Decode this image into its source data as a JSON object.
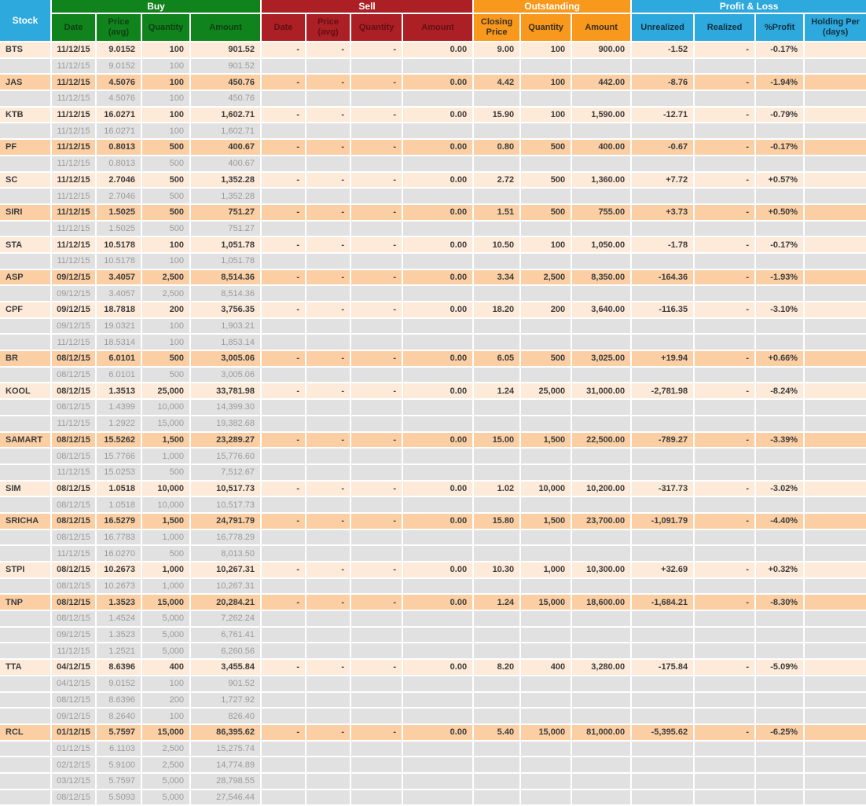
{
  "header": {
    "stock_label": "Stock",
    "buy": {
      "label": "Buy",
      "columns": [
        "Date",
        "Price (avg)",
        "Quantity",
        "Amount"
      ]
    },
    "sell": {
      "label": "Sell",
      "columns": [
        "Date",
        "Price (avg)",
        "Quantity",
        "Amount"
      ]
    },
    "outstanding": {
      "label": "Outstanding",
      "columns": [
        "Closing Price",
        "Quantity",
        "Amount"
      ]
    },
    "profit_loss": {
      "label": "Profit & Loss",
      "columns": [
        "Unrealized",
        "Realized",
        "%Profit",
        "Holding Per (days)"
      ]
    }
  },
  "colors": {
    "header_blue": "#2ea9dd",
    "buy_green": "#10831c",
    "sell_red": "#ac1f24",
    "outstanding_orange": "#f8981d",
    "row_light": "#fdead9",
    "row_dark": "#fbcfa3",
    "row_sub_gray": "#e1e1e1",
    "negative_text": "#cc1111",
    "positive_text": "#159915"
  },
  "rows": [
    {
      "stock": "BTS",
      "buy": {
        "date": "11/12/15",
        "price": "9.0152",
        "qty": "100",
        "amount": "901.52"
      },
      "sell": {
        "date": "-",
        "price": "-",
        "qty": "-",
        "amount": "0.00"
      },
      "out": {
        "close": "9.00",
        "qty": "100",
        "amount": "900.00"
      },
      "pl": {
        "unrealized": "-1.52",
        "realized": "-",
        "pct": "-0.17%",
        "sign": "neg"
      },
      "lots": [
        {
          "date": "11/12/15",
          "price": "9.0152",
          "qty": "100",
          "amount": "901.52"
        }
      ]
    },
    {
      "stock": "JAS",
      "buy": {
        "date": "11/12/15",
        "price": "4.5076",
        "qty": "100",
        "amount": "450.76"
      },
      "sell": {
        "date": "-",
        "price": "-",
        "qty": "-",
        "amount": "0.00"
      },
      "out": {
        "close": "4.42",
        "qty": "100",
        "amount": "442.00"
      },
      "pl": {
        "unrealized": "-8.76",
        "realized": "-",
        "pct": "-1.94%",
        "sign": "neg"
      },
      "lots": [
        {
          "date": "11/12/15",
          "price": "4.5076",
          "qty": "100",
          "amount": "450.76"
        }
      ]
    },
    {
      "stock": "KTB",
      "buy": {
        "date": "11/12/15",
        "price": "16.0271",
        "qty": "100",
        "amount": "1,602.71"
      },
      "sell": {
        "date": "-",
        "price": "-",
        "qty": "-",
        "amount": "0.00"
      },
      "out": {
        "close": "15.90",
        "qty": "100",
        "amount": "1,590.00"
      },
      "pl": {
        "unrealized": "-12.71",
        "realized": "-",
        "pct": "-0.79%",
        "sign": "neg"
      },
      "lots": [
        {
          "date": "11/12/15",
          "price": "16.0271",
          "qty": "100",
          "amount": "1,602.71"
        }
      ]
    },
    {
      "stock": "PF",
      "buy": {
        "date": "11/12/15",
        "price": "0.8013",
        "qty": "500",
        "amount": "400.67"
      },
      "sell": {
        "date": "-",
        "price": "-",
        "qty": "-",
        "amount": "0.00"
      },
      "out": {
        "close": "0.80",
        "qty": "500",
        "amount": "400.00"
      },
      "pl": {
        "unrealized": "-0.67",
        "realized": "-",
        "pct": "-0.17%",
        "sign": "neg"
      },
      "lots": [
        {
          "date": "11/12/15",
          "price": "0.8013",
          "qty": "500",
          "amount": "400.67"
        }
      ]
    },
    {
      "stock": "SC",
      "buy": {
        "date": "11/12/15",
        "price": "2.7046",
        "qty": "500",
        "amount": "1,352.28"
      },
      "sell": {
        "date": "-",
        "price": "-",
        "qty": "-",
        "amount": "0.00"
      },
      "out": {
        "close": "2.72",
        "qty": "500",
        "amount": "1,360.00"
      },
      "pl": {
        "unrealized": "+7.72",
        "realized": "-",
        "pct": "+0.57%",
        "sign": "pos"
      },
      "lots": [
        {
          "date": "11/12/15",
          "price": "2.7046",
          "qty": "500",
          "amount": "1,352.28"
        }
      ]
    },
    {
      "stock": "SIRI",
      "buy": {
        "date": "11/12/15",
        "price": "1.5025",
        "qty": "500",
        "amount": "751.27"
      },
      "sell": {
        "date": "-",
        "price": "-",
        "qty": "-",
        "amount": "0.00"
      },
      "out": {
        "close": "1.51",
        "qty": "500",
        "amount": "755.00"
      },
      "pl": {
        "unrealized": "+3.73",
        "realized": "-",
        "pct": "+0.50%",
        "sign": "pos"
      },
      "lots": [
        {
          "date": "11/12/15",
          "price": "1.5025",
          "qty": "500",
          "amount": "751.27"
        }
      ]
    },
    {
      "stock": "STA",
      "buy": {
        "date": "11/12/15",
        "price": "10.5178",
        "qty": "100",
        "amount": "1,051.78"
      },
      "sell": {
        "date": "-",
        "price": "-",
        "qty": "-",
        "amount": "0.00"
      },
      "out": {
        "close": "10.50",
        "qty": "100",
        "amount": "1,050.00"
      },
      "pl": {
        "unrealized": "-1.78",
        "realized": "-",
        "pct": "-0.17%",
        "sign": "neg"
      },
      "lots": [
        {
          "date": "11/12/15",
          "price": "10.5178",
          "qty": "100",
          "amount": "1,051.78"
        }
      ]
    },
    {
      "stock": "ASP",
      "buy": {
        "date": "09/12/15",
        "price": "3.4057",
        "qty": "2,500",
        "amount": "8,514.36"
      },
      "sell": {
        "date": "-",
        "price": "-",
        "qty": "-",
        "amount": "0.00"
      },
      "out": {
        "close": "3.34",
        "qty": "2,500",
        "amount": "8,350.00"
      },
      "pl": {
        "unrealized": "-164.36",
        "realized": "-",
        "pct": "-1.93%",
        "sign": "neg"
      },
      "lots": [
        {
          "date": "09/12/15",
          "price": "3.4057",
          "qty": "2,500",
          "amount": "8,514.36"
        }
      ]
    },
    {
      "stock": "CPF",
      "buy": {
        "date": "09/12/15",
        "price": "18.7818",
        "qty": "200",
        "amount": "3,756.35"
      },
      "sell": {
        "date": "-",
        "price": "-",
        "qty": "-",
        "amount": "0.00"
      },
      "out": {
        "close": "18.20",
        "qty": "200",
        "amount": "3,640.00"
      },
      "pl": {
        "unrealized": "-116.35",
        "realized": "-",
        "pct": "-3.10%",
        "sign": "neg"
      },
      "lots": [
        {
          "date": "09/12/15",
          "price": "19.0321",
          "qty": "100",
          "amount": "1,903.21"
        },
        {
          "date": "11/12/15",
          "price": "18.5314",
          "qty": "100",
          "amount": "1,853.14"
        }
      ]
    },
    {
      "stock": "BR",
      "buy": {
        "date": "08/12/15",
        "price": "6.0101",
        "qty": "500",
        "amount": "3,005.06"
      },
      "sell": {
        "date": "-",
        "price": "-",
        "qty": "-",
        "amount": "0.00"
      },
      "out": {
        "close": "6.05",
        "qty": "500",
        "amount": "3,025.00"
      },
      "pl": {
        "unrealized": "+19.94",
        "realized": "-",
        "pct": "+0.66%",
        "sign": "pos"
      },
      "lots": [
        {
          "date": "08/12/15",
          "price": "6.0101",
          "qty": "500",
          "amount": "3,005.06"
        }
      ]
    },
    {
      "stock": "KOOL",
      "buy": {
        "date": "08/12/15",
        "price": "1.3513",
        "qty": "25,000",
        "amount": "33,781.98"
      },
      "sell": {
        "date": "-",
        "price": "-",
        "qty": "-",
        "amount": "0.00"
      },
      "out": {
        "close": "1.24",
        "qty": "25,000",
        "amount": "31,000.00"
      },
      "pl": {
        "unrealized": "-2,781.98",
        "realized": "-",
        "pct": "-8.24%",
        "sign": "neg"
      },
      "lots": [
        {
          "date": "08/12/15",
          "price": "1.4399",
          "qty": "10,000",
          "amount": "14,399.30"
        },
        {
          "date": "11/12/15",
          "price": "1.2922",
          "qty": "15,000",
          "amount": "19,382.68"
        }
      ]
    },
    {
      "stock": "SAMART",
      "buy": {
        "date": "08/12/15",
        "price": "15.5262",
        "qty": "1,500",
        "amount": "23,289.27"
      },
      "sell": {
        "date": "-",
        "price": "-",
        "qty": "-",
        "amount": "0.00"
      },
      "out": {
        "close": "15.00",
        "qty": "1,500",
        "amount": "22,500.00"
      },
      "pl": {
        "unrealized": "-789.27",
        "realized": "-",
        "pct": "-3.39%",
        "sign": "neg"
      },
      "lots": [
        {
          "date": "08/12/15",
          "price": "15.7766",
          "qty": "1,000",
          "amount": "15,776.60"
        },
        {
          "date": "11/12/15",
          "price": "15.0253",
          "qty": "500",
          "amount": "7,512.67"
        }
      ]
    },
    {
      "stock": "SIM",
      "buy": {
        "date": "08/12/15",
        "price": "1.0518",
        "qty": "10,000",
        "amount": "10,517.73"
      },
      "sell": {
        "date": "-",
        "price": "-",
        "qty": "-",
        "amount": "0.00"
      },
      "out": {
        "close": "1.02",
        "qty": "10,000",
        "amount": "10,200.00"
      },
      "pl": {
        "unrealized": "-317.73",
        "realized": "-",
        "pct": "-3.02%",
        "sign": "neg"
      },
      "lots": [
        {
          "date": "08/12/15",
          "price": "1.0518",
          "qty": "10,000",
          "amount": "10,517.73"
        }
      ]
    },
    {
      "stock": "SRICHA",
      "buy": {
        "date": "08/12/15",
        "price": "16.5279",
        "qty": "1,500",
        "amount": "24,791.79"
      },
      "sell": {
        "date": "-",
        "price": "-",
        "qty": "-",
        "amount": "0.00"
      },
      "out": {
        "close": "15.80",
        "qty": "1,500",
        "amount": "23,700.00"
      },
      "pl": {
        "unrealized": "-1,091.79",
        "realized": "-",
        "pct": "-4.40%",
        "sign": "neg"
      },
      "lots": [
        {
          "date": "08/12/15",
          "price": "16.7783",
          "qty": "1,000",
          "amount": "16,778.29"
        },
        {
          "date": "11/12/15",
          "price": "16.0270",
          "qty": "500",
          "amount": "8,013.50"
        }
      ]
    },
    {
      "stock": "STPI",
      "buy": {
        "date": "08/12/15",
        "price": "10.2673",
        "qty": "1,000",
        "amount": "10,267.31"
      },
      "sell": {
        "date": "-",
        "price": "-",
        "qty": "-",
        "amount": "0.00"
      },
      "out": {
        "close": "10.30",
        "qty": "1,000",
        "amount": "10,300.00"
      },
      "pl": {
        "unrealized": "+32.69",
        "realized": "-",
        "pct": "+0.32%",
        "sign": "pos"
      },
      "lots": [
        {
          "date": "08/12/15",
          "price": "10.2673",
          "qty": "1,000",
          "amount": "10,267.31"
        }
      ]
    },
    {
      "stock": "TNP",
      "buy": {
        "date": "08/12/15",
        "price": "1.3523",
        "qty": "15,000",
        "amount": "20,284.21"
      },
      "sell": {
        "date": "-",
        "price": "-",
        "qty": "-",
        "amount": "0.00"
      },
      "out": {
        "close": "1.24",
        "qty": "15,000",
        "amount": "18,600.00"
      },
      "pl": {
        "unrealized": "-1,684.21",
        "realized": "-",
        "pct": "-8.30%",
        "sign": "neg"
      },
      "lots": [
        {
          "date": "08/12/15",
          "price": "1.4524",
          "qty": "5,000",
          "amount": "7,262.24"
        },
        {
          "date": "09/12/15",
          "price": "1.3523",
          "qty": "5,000",
          "amount": "6,761.41"
        },
        {
          "date": "11/12/15",
          "price": "1.2521",
          "qty": "5,000",
          "amount": "6,260.56"
        }
      ]
    },
    {
      "stock": "TTA",
      "buy": {
        "date": "04/12/15",
        "price": "8.6396",
        "qty": "400",
        "amount": "3,455.84"
      },
      "sell": {
        "date": "-",
        "price": "-",
        "qty": "-",
        "amount": "0.00"
      },
      "out": {
        "close": "8.20",
        "qty": "400",
        "amount": "3,280.00"
      },
      "pl": {
        "unrealized": "-175.84",
        "realized": "-",
        "pct": "-5.09%",
        "sign": "neg"
      },
      "lots": [
        {
          "date": "04/12/15",
          "price": "9.0152",
          "qty": "100",
          "amount": "901.52"
        },
        {
          "date": "08/12/15",
          "price": "8.6396",
          "qty": "200",
          "amount": "1,727.92"
        },
        {
          "date": "09/12/15",
          "price": "8.2640",
          "qty": "100",
          "amount": "826.40"
        }
      ]
    },
    {
      "stock": "RCL",
      "buy": {
        "date": "01/12/15",
        "price": "5.7597",
        "qty": "15,000",
        "amount": "86,395.62"
      },
      "sell": {
        "date": "-",
        "price": "-",
        "qty": "-",
        "amount": "0.00"
      },
      "out": {
        "close": "5.40",
        "qty": "15,000",
        "amount": "81,000.00"
      },
      "pl": {
        "unrealized": "-5,395.62",
        "realized": "-",
        "pct": "-6.25%",
        "sign": "neg"
      },
      "lots": [
        {
          "date": "01/12/15",
          "price": "6.1103",
          "qty": "2,500",
          "amount": "15,275.74"
        },
        {
          "date": "02/12/15",
          "price": "5.9100",
          "qty": "2,500",
          "amount": "14,774.89"
        },
        {
          "date": "03/12/15",
          "price": "5.7597",
          "qty": "5,000",
          "amount": "28,798.55"
        },
        {
          "date": "08/12/15",
          "price": "5.5093",
          "qty": "5,000",
          "amount": "27,546.44"
        }
      ]
    }
  ]
}
